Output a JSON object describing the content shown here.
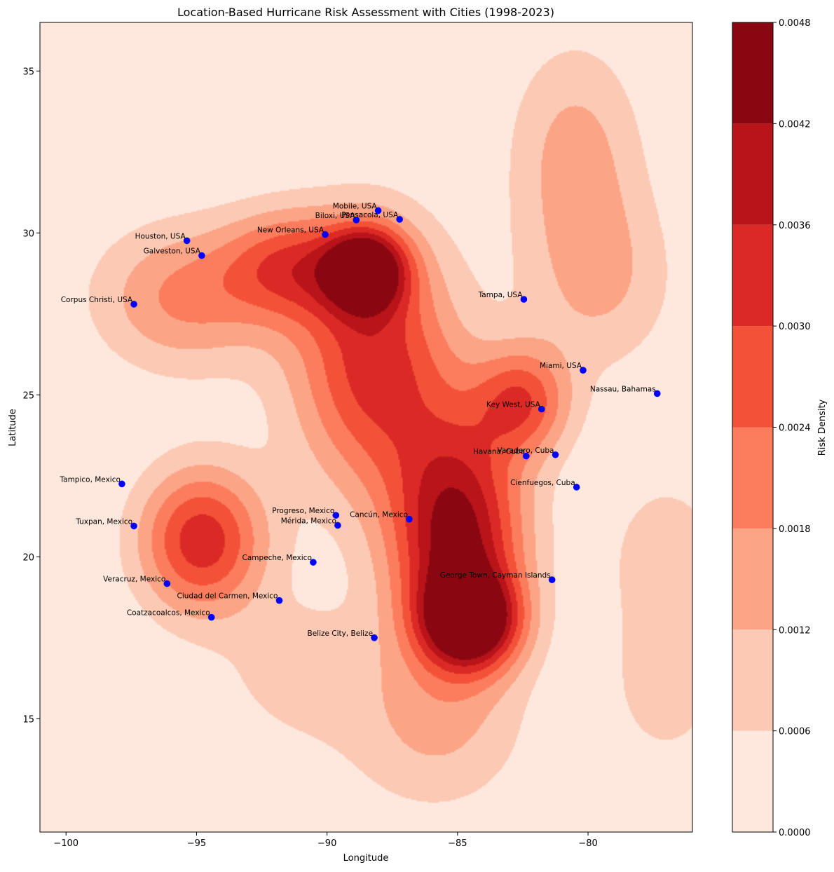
{
  "chart_data": {
    "type": "heatmap",
    "title": "Location-Based Hurricane Risk Assessment with Cities (1998-2023)",
    "xlabel": "Longitude",
    "ylabel": "Latitude",
    "xlim": [
      -101,
      -76
    ],
    "ylim": [
      11.5,
      36.5
    ],
    "x_ticks": [
      -100,
      -95,
      -90,
      -85,
      -80
    ],
    "y_ticks": [
      15,
      20,
      25,
      30,
      35
    ],
    "x_tick_labels": [
      "−100",
      "−95",
      "−90",
      "−85",
      "−80"
    ],
    "y_tick_labels": [
      "15",
      "20",
      "25",
      "30",
      "35"
    ],
    "colorbar": {
      "label": "Risk Density",
      "levels": [
        0.0,
        0.0006,
        0.0012,
        0.0018,
        0.0024,
        0.003,
        0.0036,
        0.0042,
        0.0048
      ],
      "tick_labels": [
        "0.0000",
        "0.0006",
        "0.0012",
        "0.0018",
        "0.0024",
        "0.0030",
        "0.0036",
        "0.0042",
        "0.0048"
      ],
      "colors": [
        "#fee8dd",
        "#fcc9b4",
        "#fba486",
        "#fb7d5d",
        "#f35239",
        "#db2a26",
        "#b81419",
        "#8a0712"
      ]
    },
    "density_centers": [
      {
        "lon": -88.5,
        "lat": 28.9,
        "peak": 0.0042,
        "sx": 1.1,
        "sy": 0.9
      },
      {
        "lon": -88.2,
        "lat": 26.0,
        "peak": 0.0033,
        "sx": 2.2,
        "sy": 2.8
      },
      {
        "lon": -85.0,
        "lat": 20.5,
        "peak": 0.0045,
        "sx": 1.8,
        "sy": 2.6
      },
      {
        "lon": -84.5,
        "lat": 18.0,
        "peak": 0.0043,
        "sx": 1.3,
        "sy": 1.0
      },
      {
        "lon": -82.5,
        "lat": 24.8,
        "peak": 0.0026,
        "sx": 1.3,
        "sy": 1.2
      },
      {
        "lon": -94.8,
        "lat": 20.5,
        "peak": 0.0034,
        "sx": 1.7,
        "sy": 1.6
      },
      {
        "lon": -95.5,
        "lat": 28.0,
        "peak": 0.0019,
        "sx": 2.4,
        "sy": 1.6
      },
      {
        "lon": -91.5,
        "lat": 29.0,
        "peak": 0.0024,
        "sx": 1.8,
        "sy": 1.2
      },
      {
        "lon": -80.5,
        "lat": 32.5,
        "peak": 0.0014,
        "sx": 1.8,
        "sy": 2.4
      },
      {
        "lon": -79.5,
        "lat": 28.5,
        "peak": 0.0012,
        "sx": 2.0,
        "sy": 2.0
      },
      {
        "lon": -86.0,
        "lat": 14.5,
        "peak": 0.0011,
        "sx": 2.5,
        "sy": 1.8
      },
      {
        "lon": -91.0,
        "lat": 16.5,
        "peak": 0.0009,
        "sx": 2.2,
        "sy": 1.6
      },
      {
        "lon": -77.0,
        "lat": 20.0,
        "peak": 0.001,
        "sx": 1.6,
        "sy": 1.8
      },
      {
        "lon": -77.0,
        "lat": 16.0,
        "peak": 0.0009,
        "sx": 1.6,
        "sy": 1.8
      }
    ],
    "cities": [
      {
        "name": "Mobile, USA",
        "lon": -88.04,
        "lat": 30.69
      },
      {
        "name": "Pensacola, USA",
        "lon": -87.22,
        "lat": 30.42
      },
      {
        "name": "Biloxi, USA",
        "lon": -88.88,
        "lat": 30.4
      },
      {
        "name": "New Orleans, USA",
        "lon": -90.07,
        "lat": 29.95
      },
      {
        "name": "Houston, USA",
        "lon": -95.37,
        "lat": 29.76
      },
      {
        "name": "Galveston, USA",
        "lon": -94.8,
        "lat": 29.3
      },
      {
        "name": "Corpus Christi, USA",
        "lon": -97.4,
        "lat": 27.8
      },
      {
        "name": "Tampa, USA",
        "lon": -82.46,
        "lat": 27.95
      },
      {
        "name": "Miami, USA",
        "lon": -80.19,
        "lat": 25.76
      },
      {
        "name": "Nassau, Bahamas",
        "lon": -77.35,
        "lat": 25.04
      },
      {
        "name": "Key West, USA",
        "lon": -81.78,
        "lat": 24.56
      },
      {
        "name": "Havana, Cuba",
        "lon": -82.37,
        "lat": 23.11
      },
      {
        "name": "Varadero, Cuba",
        "lon": -81.25,
        "lat": 23.15
      },
      {
        "name": "Cienfuegos, Cuba",
        "lon": -80.44,
        "lat": 22.15
      },
      {
        "name": "Tampico, Mexico",
        "lon": -97.86,
        "lat": 22.25
      },
      {
        "name": "Progreso, Mexico",
        "lon": -89.66,
        "lat": 21.28
      },
      {
        "name": "Cancún, Mexico",
        "lon": -86.85,
        "lat": 21.16
      },
      {
        "name": "Mérida, Mexico",
        "lon": -89.59,
        "lat": 20.97
      },
      {
        "name": "Tuxpan, Mexico",
        "lon": -97.4,
        "lat": 20.95
      },
      {
        "name": "Campeche, Mexico",
        "lon": -90.53,
        "lat": 19.83
      },
      {
        "name": "George Town, Cayman Islands",
        "lon": -81.38,
        "lat": 19.29
      },
      {
        "name": "Veracruz, Mexico",
        "lon": -96.13,
        "lat": 19.17
      },
      {
        "name": "Ciudad del Carmen, Mexico",
        "lon": -91.83,
        "lat": 18.65
      },
      {
        "name": "Coatzacoalcos, Mexico",
        "lon": -94.43,
        "lat": 18.13
      },
      {
        "name": "Belize City, Belize",
        "lon": -88.19,
        "lat": 17.5
      }
    ]
  }
}
